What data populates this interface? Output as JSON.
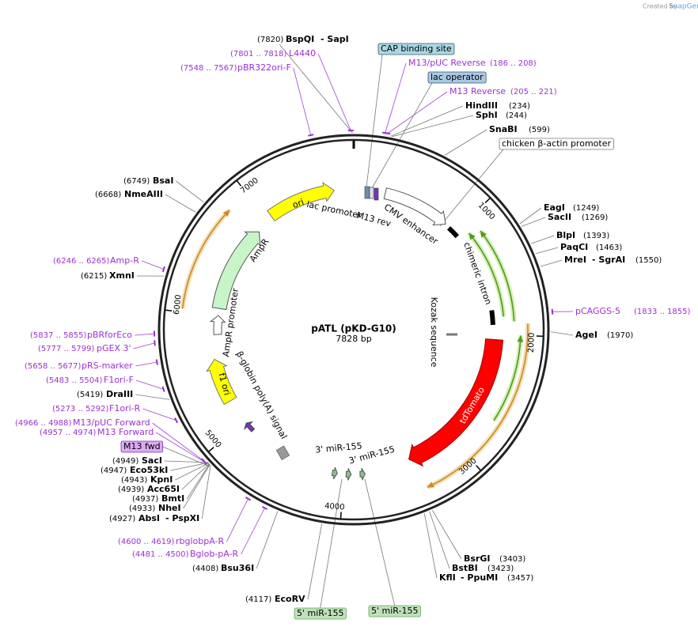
{
  "header": {
    "credit": "Created by",
    "brand": "SnapGene"
  },
  "map": {
    "name": "pATL (pKD-G10)",
    "length": "7828 bp",
    "ticks": [
      "1000",
      "2000",
      "3000",
      "4000",
      "5000",
      "6000",
      "7000"
    ]
  },
  "features": [
    {
      "label": "ori"
    },
    {
      "label": "lac promoter"
    },
    {
      "label": "M13 rev"
    },
    {
      "label": "CMV enhancer"
    },
    {
      "label": "chimeric intron"
    },
    {
      "label": "Kozak sequence"
    },
    {
      "label": "tdTomato"
    },
    {
      "label": "3' miR-155"
    },
    {
      "label": "3' miR-155"
    },
    {
      "label": "β-globin poly(A) signal"
    },
    {
      "label": "f1 ori"
    },
    {
      "label": "AmpR promoter"
    },
    {
      "label": "AmpR"
    }
  ],
  "boxed_features": [
    {
      "label": "CAP binding site"
    },
    {
      "label": "lac operator"
    },
    {
      "label": "chicken β-actin promoter"
    },
    {
      "label": "M13 fwd"
    },
    {
      "label": "5' miR-155"
    },
    {
      "label": "5' miR-155"
    }
  ],
  "sites": [
    {
      "position": "(7820)",
      "names": [
        "BspQI",
        "- SapI"
      ]
    },
    {
      "position": "(234)",
      "names": [
        "HindIII"
      ]
    },
    {
      "position": "(244)",
      "names": [
        "SphI"
      ]
    },
    {
      "position": "(599)",
      "names": [
        "SnaBI"
      ]
    },
    {
      "position": "(1249)",
      "names": [
        "EagI"
      ]
    },
    {
      "position": "(1269)",
      "names": [
        "SacII"
      ]
    },
    {
      "position": "(1393)",
      "names": [
        "BlpI"
      ]
    },
    {
      "position": "(1463)",
      "names": [
        "PaqCI"
      ]
    },
    {
      "position": "(1550)",
      "names": [
        "MreI",
        "- SgrAI"
      ]
    },
    {
      "position": "(1970)",
      "names": [
        "AgeI"
      ]
    },
    {
      "position": "(3403)",
      "names": [
        "BsrGI"
      ]
    },
    {
      "position": "(3423)",
      "names": [
        "BstBI"
      ]
    },
    {
      "position": "(3457)",
      "names": [
        "KflI",
        "- PpuMI"
      ]
    },
    {
      "position": "(4117)",
      "names": [
        "EcoRV"
      ]
    },
    {
      "position": "(4408)",
      "names": [
        "Bsu36I"
      ]
    },
    {
      "position": "(4927)",
      "names": [
        "AbsI",
        "- PspXI"
      ]
    },
    {
      "position": "(4933)",
      "names": [
        "NheI"
      ]
    },
    {
      "position": "(4937)",
      "names": [
        "BmtI"
      ]
    },
    {
      "position": "(4939)",
      "names": [
        "Acc65I"
      ]
    },
    {
      "position": "(4943)",
      "names": [
        "KpnI"
      ]
    },
    {
      "position": "(4947)",
      "names": [
        "Eco53kI"
      ]
    },
    {
      "position": "(4949)",
      "names": [
        "SacI"
      ]
    },
    {
      "position": "(5419)",
      "names": [
        "DraIII"
      ]
    },
    {
      "position": "(6215)",
      "names": [
        "XmnI"
      ]
    },
    {
      "position": "(6668)",
      "names": [
        "NmeAIII"
      ]
    },
    {
      "position": "(6749)",
      "names": [
        "BsaI"
      ]
    }
  ],
  "primers": [
    {
      "range": "(7801 .. 7818)",
      "name": "L4440"
    },
    {
      "range": "(7548 .. 7567)",
      "name": "pBR322ori-F"
    },
    {
      "range": "(186 .. 208)",
      "name": "M13/pUC Reverse"
    },
    {
      "range": "(205 .. 221)",
      "name": "M13 Reverse"
    },
    {
      "range": "(1833 .. 1855)",
      "name": "pCAGGS-5"
    },
    {
      "range": "(4600 .. 4619)",
      "name": "rbglobpA-R"
    },
    {
      "range": "(4481 .. 4500)",
      "name": "Bglob-pA-R"
    },
    {
      "range": "(4966 .. 4988)",
      "name": "M13/pUC Forward"
    },
    {
      "range": "(4957 .. 4974)",
      "name": "M13 Forward"
    },
    {
      "range": "(5273 .. 5292)",
      "name": "F1ori-R"
    },
    {
      "range": "(5483 .. 5504)",
      "name": "F1ori-F"
    },
    {
      "range": "(5658 .. 5677)",
      "name": "pRS-marker"
    },
    {
      "range": "(5777 .. 5799)",
      "name": "pGEX 3'"
    },
    {
      "range": "(5837 .. 5855)",
      "name": "pBRforEco"
    },
    {
      "range": "(6246 .. 6265)",
      "name": "Amp-R"
    }
  ]
}
